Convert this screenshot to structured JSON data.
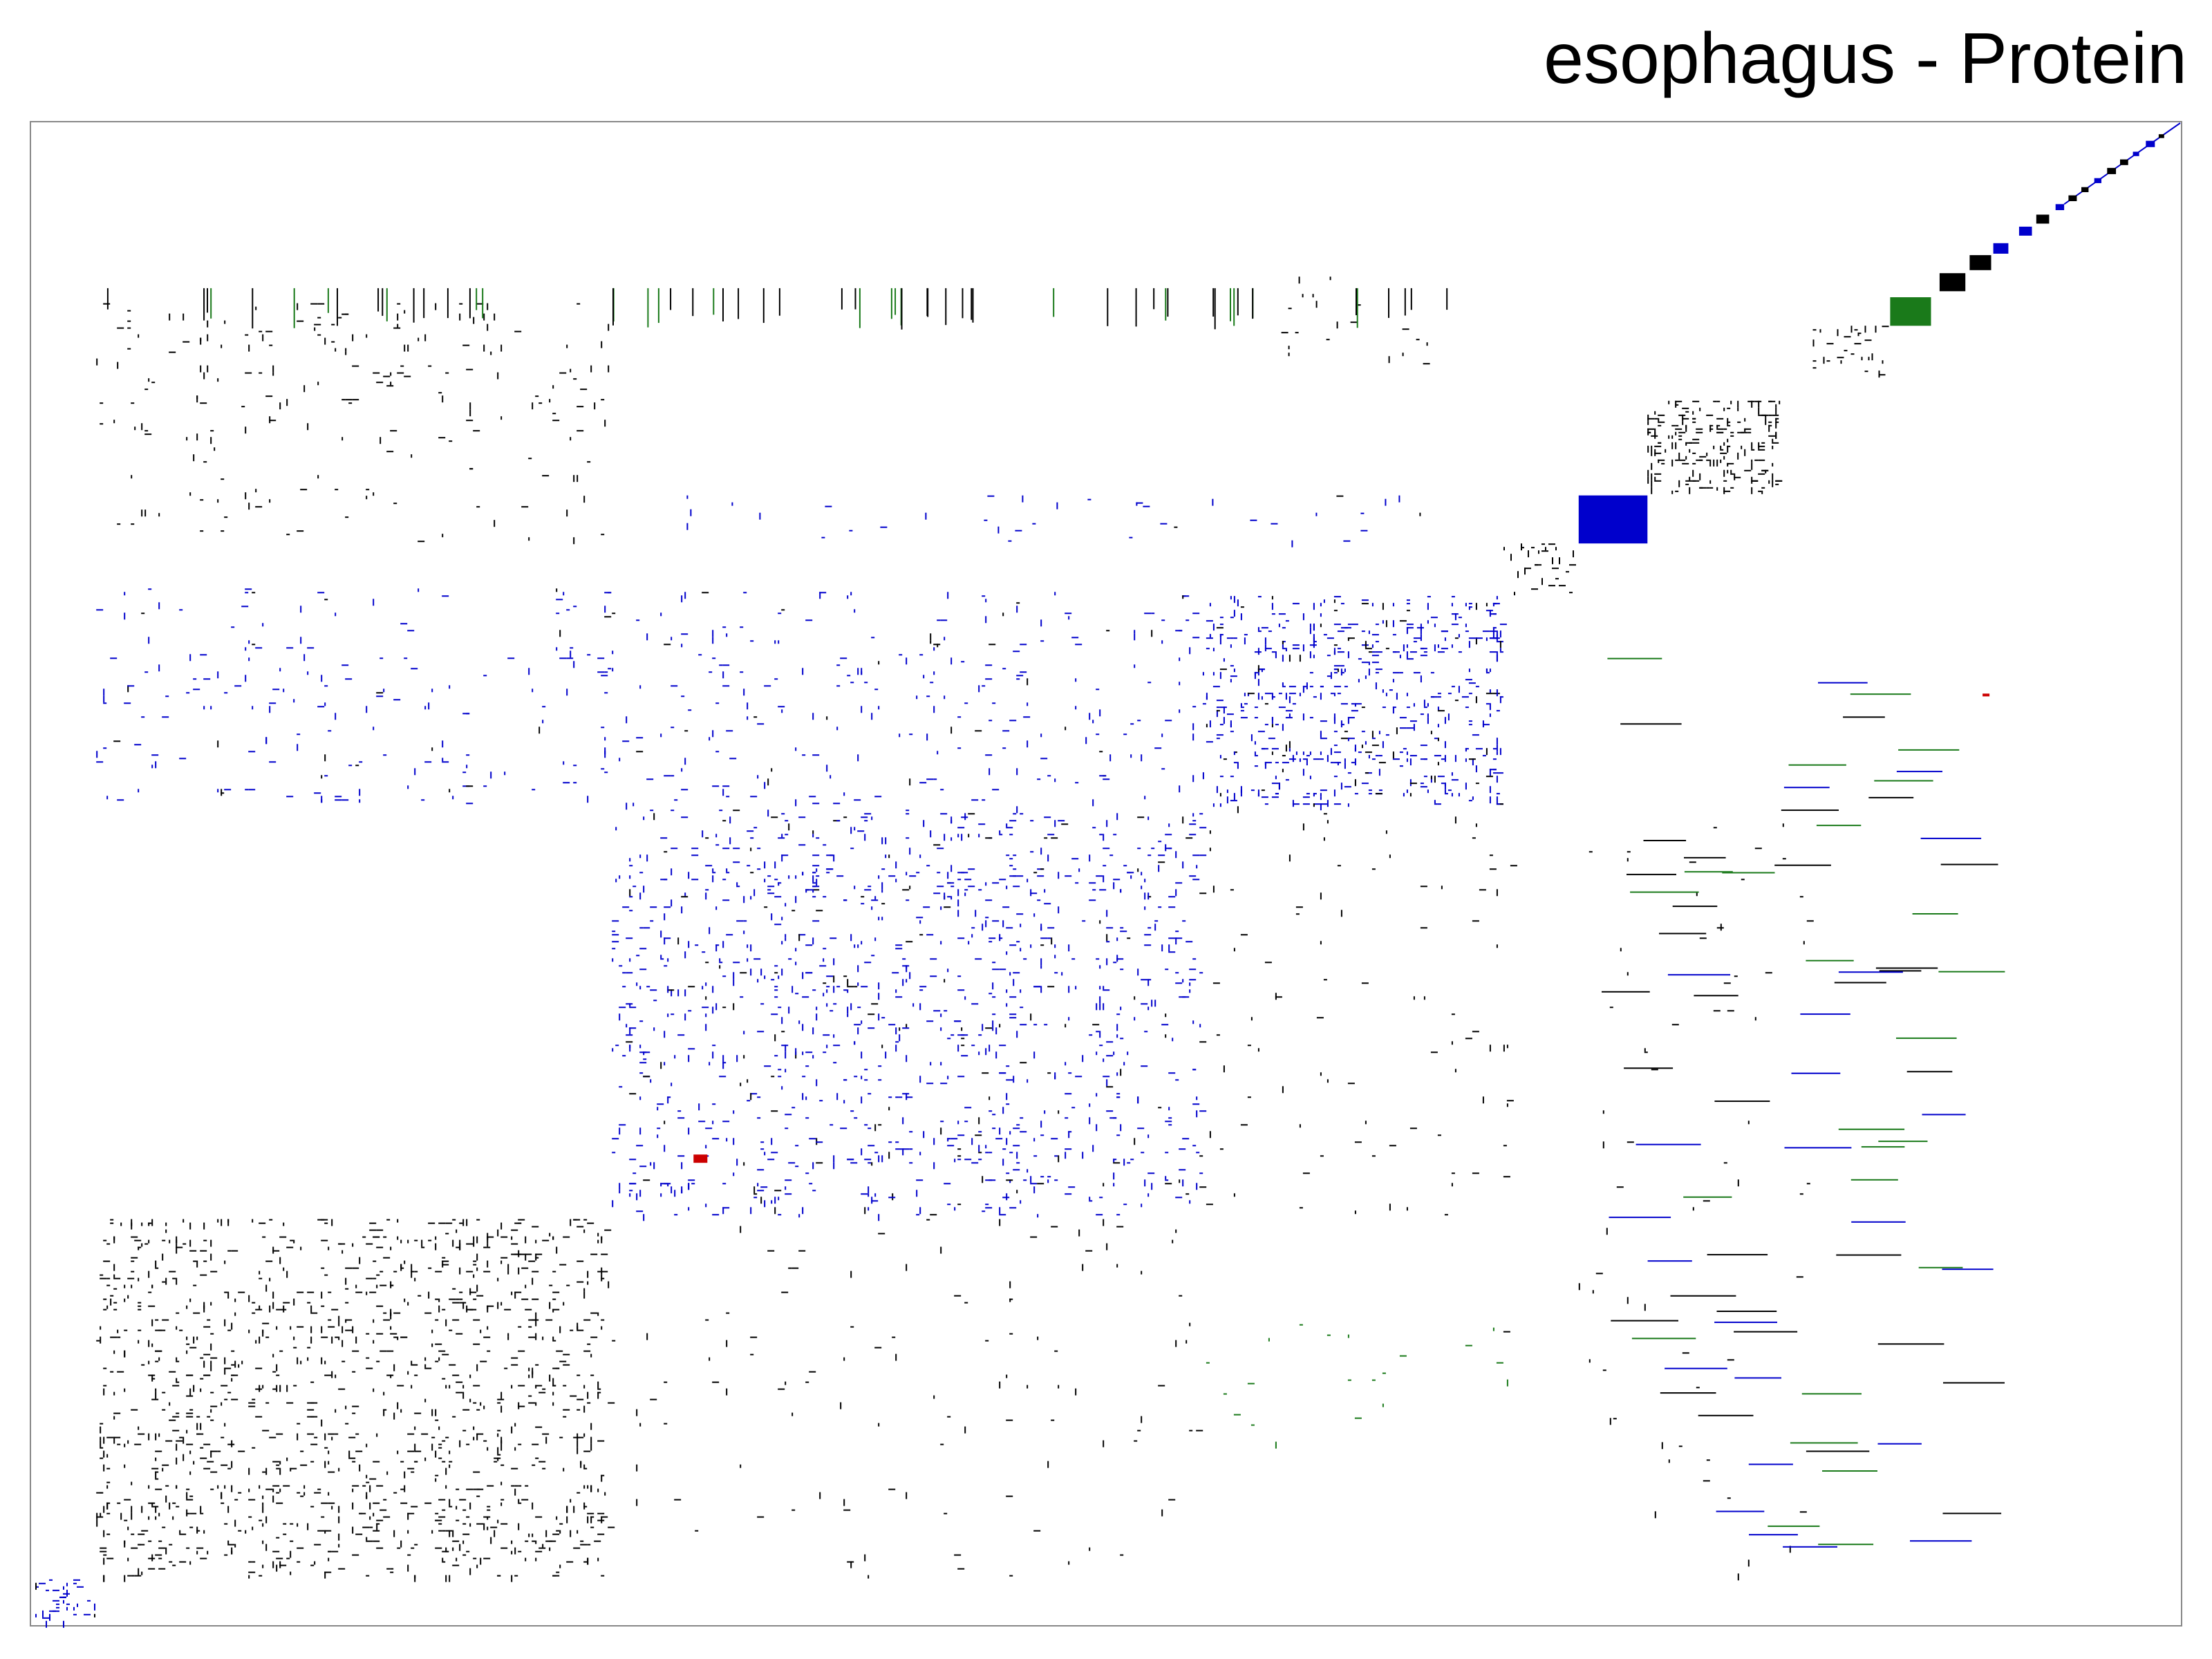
{
  "title": "esophagus - Protein",
  "chart_data": {
    "type": "heatmap",
    "title": "esophagus - Protein",
    "xlabel": "",
    "ylabel": "",
    "axes": "none",
    "ticks": "none",
    "matrix": "symmetric adjacency / co-occurrence matrix, rows and columns in the same clustered order, diagonal running from bottom-left to top-right",
    "grid": false,
    "legend": "none",
    "colors": {
      "black": "#000000",
      "blue": "#0000cc",
      "green": "#1a7a1a",
      "red": "#cc0000",
      "frame": "#888888"
    },
    "diagonal_blocks": [
      {
        "start": 0.0,
        "end": 0.03,
        "color": "blue",
        "density": 0.55
      },
      {
        "start": 0.03,
        "end": 0.27,
        "color": "black",
        "density": 0.3
      },
      {
        "start": 0.27,
        "end": 0.545,
        "color": "blue",
        "density": 0.22
      },
      {
        "start": 0.545,
        "end": 0.685,
        "color": "blue",
        "density": 0.4
      },
      {
        "start": 0.685,
        "end": 0.72,
        "color": "black",
        "density": 0.35
      },
      {
        "start": 0.72,
        "end": 0.752,
        "color": "blue",
        "density": 0.88
      },
      {
        "start": 0.752,
        "end": 0.815,
        "color": "black",
        "density": 0.75
      },
      {
        "start": 0.829,
        "end": 0.865,
        "color": "black",
        "density": 0.3
      },
      {
        "start": 0.865,
        "end": 0.884,
        "color": "green",
        "density": 0.92
      },
      {
        "start": 0.888,
        "end": 0.9,
        "color": "black",
        "density": 0.98
      },
      {
        "start": 0.902,
        "end": 0.912,
        "color": "black",
        "density": 0.98
      },
      {
        "start": 0.913,
        "end": 0.92,
        "color": "blue",
        "density": 0.9
      },
      {
        "start": 0.925,
        "end": 0.931,
        "color": "blue",
        "density": 0.9
      },
      {
        "start": 0.933,
        "end": 0.939,
        "color": "black",
        "density": 0.95
      },
      {
        "start": 0.942,
        "end": 0.946,
        "color": "blue",
        "density": 0.9
      }
    ]
  }
}
